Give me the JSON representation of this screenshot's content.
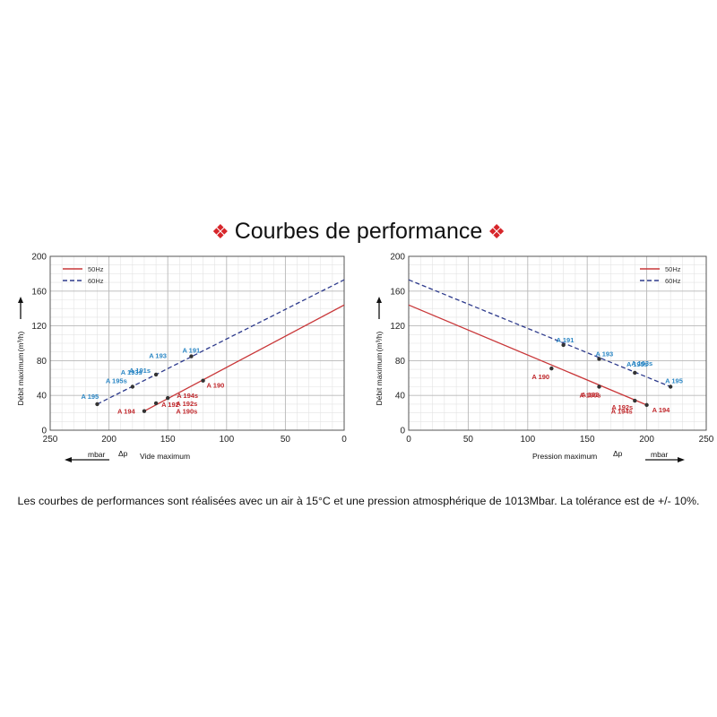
{
  "title": {
    "text": "Courbes de performance",
    "ornament_left": "❖",
    "ornament_right": "❖"
  },
  "footnote": "Les courbes de performances sont réalisées avec un air à 15°C et une pression atmosphérique de 1013Mbar. La tolérance est de +/- 10%.",
  "colors": {
    "hz50": "#c9383a",
    "hz60": "#2d3a8c",
    "label50": "#c0282c",
    "label60": "#2a86c4"
  },
  "chart_data": [
    {
      "id": "vide",
      "type": "line",
      "xlim": [
        250,
        0
      ],
      "ylim": [
        0,
        200
      ],
      "xticks": [
        250,
        200,
        150,
        100,
        50,
        0
      ],
      "yticks": [
        0,
        40,
        80,
        120,
        160,
        200
      ],
      "xlabel": "Vide maximum",
      "xunit": "mbar",
      "xsymbol": "Δp",
      "ylabel": "Débit maximum",
      "yunit": "(m³/h)",
      "grid": true,
      "legend": "top-left",
      "series": [
        {
          "name": "50Hz",
          "style": "solid",
          "x": [
            170,
            0
          ],
          "y": [
            22,
            144
          ]
        },
        {
          "name": "60Hz",
          "style": "dashed",
          "x": [
            210,
            0
          ],
          "y": [
            30,
            173
          ]
        }
      ],
      "points": [
        {
          "x": 170,
          "y": 22,
          "series": "50Hz",
          "label": "A 194"
        },
        {
          "x": 160,
          "y": 31,
          "series": "50Hz",
          "label": "A 192"
        },
        {
          "x": 150,
          "y": 37,
          "series": "50Hz",
          "label": "A 194s"
        },
        {
          "x": 120,
          "y": 57,
          "series": "50Hz",
          "label": "A 190"
        },
        {
          "x": 210,
          "y": 30,
          "series": "60Hz",
          "label": "A 195"
        },
        {
          "x": 180,
          "y": 50,
          "series": "60Hz",
          "label": "A 195s"
        },
        {
          "x": 160,
          "y": 64,
          "series": "60Hz",
          "label": "A 191s"
        },
        {
          "x": 130,
          "y": 85,
          "series": "60Hz",
          "label": "A 191"
        }
      ],
      "annotations": [
        {
          "text": "A 193",
          "x": 166,
          "y": 83,
          "series": "60Hz"
        },
        {
          "text": "A 193s",
          "x": 190,
          "y": 64,
          "series": "60Hz"
        },
        {
          "text": "A 192s",
          "x": 143,
          "y": 28,
          "series": "50Hz"
        },
        {
          "text": "A 190s",
          "x": 143,
          "y": 19,
          "series": "50Hz"
        }
      ]
    },
    {
      "id": "pression",
      "type": "line",
      "xlim": [
        0,
        250
      ],
      "ylim": [
        0,
        200
      ],
      "xticks": [
        0,
        50,
        100,
        150,
        200,
        250
      ],
      "yticks": [
        0,
        40,
        80,
        120,
        160,
        200
      ],
      "xlabel": "Pression maximum",
      "xunit": "mbar",
      "xsymbol": "Δp",
      "ylabel": "Débit maximum",
      "yunit": "(m³/h)",
      "grid": true,
      "legend": "top-right",
      "series": [
        {
          "name": "50Hz",
          "style": "solid",
          "x": [
            0,
            200
          ],
          "y": [
            144,
            29
          ]
        },
        {
          "name": "60Hz",
          "style": "dashed",
          "x": [
            0,
            220
          ],
          "y": [
            173,
            50
          ]
        }
      ],
      "points": [
        {
          "x": 120,
          "y": 71,
          "series": "50Hz",
          "label": "A 190"
        },
        {
          "x": 160,
          "y": 50,
          "series": "50Hz",
          "label": "A 190s"
        },
        {
          "x": 190,
          "y": 34,
          "series": "50Hz",
          "label": "A 192s"
        },
        {
          "x": 200,
          "y": 29,
          "series": "50Hz",
          "label": "A 194"
        },
        {
          "x": 130,
          "y": 98,
          "series": "60Hz",
          "label": "A 191"
        },
        {
          "x": 160,
          "y": 82,
          "series": "60Hz",
          "label": "A 193"
        },
        {
          "x": 190,
          "y": 66,
          "series": "60Hz",
          "label": "A 193s"
        },
        {
          "x": 220,
          "y": 50,
          "series": "60Hz",
          "label": "A 195"
        }
      ],
      "annotations": [
        {
          "text": "A 192",
          "x": 145,
          "y": 38,
          "series": "50Hz"
        },
        {
          "text": "A 194s",
          "x": 170,
          "y": 19,
          "series": "50Hz"
        },
        {
          "text": "A 195s",
          "x": 183,
          "y": 73,
          "series": "60Hz"
        }
      ]
    }
  ]
}
